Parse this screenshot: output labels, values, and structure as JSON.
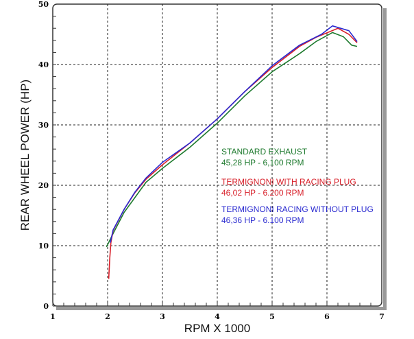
{
  "chart_data": {
    "type": "line",
    "xlabel": "RPM X 1000",
    "ylabel": "REAR WHEEL POWER (HP)",
    "xlim": [
      1,
      7
    ],
    "ylim": [
      0,
      50
    ],
    "xticks": [
      "1",
      "2",
      "3",
      "4",
      "5",
      "6",
      "7"
    ],
    "yticks": [
      "0",
      "10",
      "20",
      "30",
      "40",
      "50"
    ],
    "grid": true,
    "legend_placement": "center-right",
    "series": [
      {
        "name": "STANDARD EXHAUST",
        "note": "45,28 HP - 6,100 RPM",
        "color": "#1e7a2e",
        "x": [
          1.98,
          2.1,
          2.3,
          2.5,
          2.7,
          3,
          3.5,
          4,
          4.5,
          5,
          5.5,
          5.8,
          6.1,
          6.3,
          6.45,
          6.55
        ],
        "y": [
          9.8,
          12,
          15.5,
          18,
          20.5,
          22.8,
          26.3,
          30.3,
          34.8,
          38.8,
          41.8,
          43.8,
          45.3,
          44.6,
          43.2,
          43
        ]
      },
      {
        "name": "TERMIGNONI WITH RACING PLUG",
        "note": "46,02 HP - 6.200 RPM",
        "color": "#d8202a",
        "x": [
          2.02,
          2.04,
          2.06,
          2.1,
          2.3,
          2.5,
          2.7,
          3,
          3.5,
          4,
          4.5,
          5,
          5.5,
          5.8,
          6.2,
          6.4,
          6.55
        ],
        "y": [
          4.5,
          8,
          10.5,
          12.5,
          16,
          18.8,
          21,
          23.4,
          27,
          31,
          35.5,
          39.5,
          43,
          44.5,
          46,
          45,
          43.6
        ]
      },
      {
        "name": "TERMIGNONI RACING WITHOUT PLUG",
        "note": "46,36 HP - 6.100 RPM",
        "color": "#2a2ad0",
        "x": [
          2.05,
          2.1,
          2.3,
          2.5,
          2.7,
          3,
          3.5,
          4,
          4.5,
          5,
          5.5,
          5.9,
          6.1,
          6.4,
          6.55
        ],
        "y": [
          10.5,
          12.6,
          16,
          18.9,
          21.2,
          23.8,
          27,
          31,
          35.5,
          39.8,
          43.2,
          45,
          46.4,
          45.6,
          43.8
        ]
      }
    ]
  }
}
